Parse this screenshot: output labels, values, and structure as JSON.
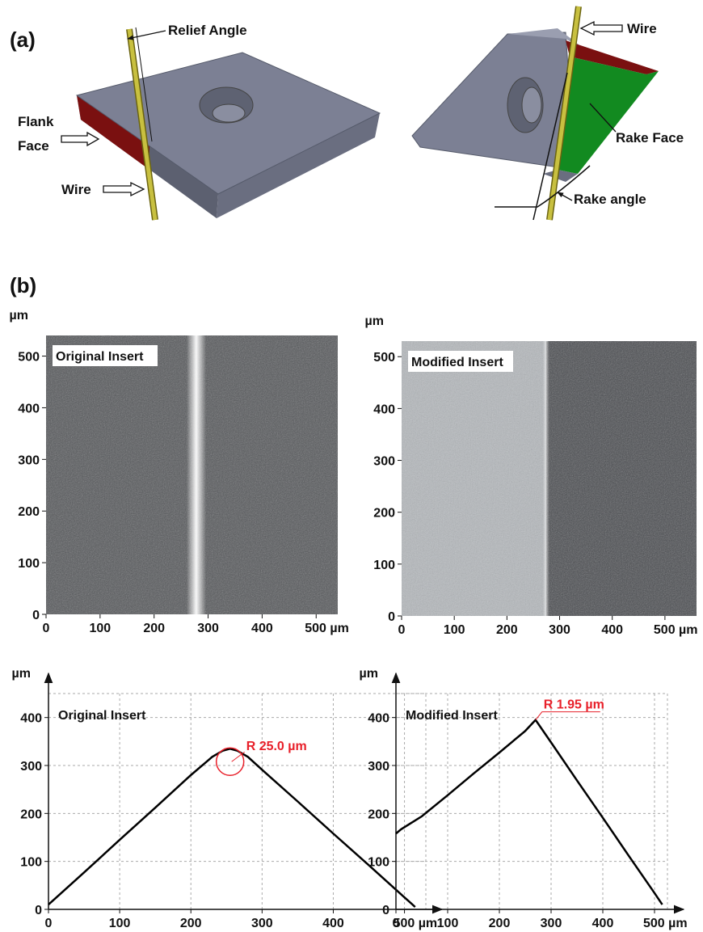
{
  "panel_a": {
    "label": "(a)",
    "relief_angle": "Relief Angle",
    "flank_face": [
      "Flank",
      "Face"
    ],
    "wire_left": "Wire",
    "wire_right": "Wire",
    "rake_face": "Rake Face",
    "rake_angle": "Rake angle"
  },
  "panel_b": {
    "label": "(b)"
  },
  "chart_data": [
    {
      "type": "image",
      "title": "Original Insert",
      "y_label": "µm",
      "xlim": [
        0,
        540
      ],
      "ylim": [
        0,
        540
      ],
      "xticks": [
        0,
        100,
        200,
        300,
        400,
        {
          "value": 500,
          "label": "500 µm"
        }
      ],
      "yticks": [
        0,
        100,
        200,
        300,
        400,
        500
      ]
    },
    {
      "type": "image",
      "title": "Modified Insert",
      "y_label": "µm",
      "xlim": [
        0,
        560
      ],
      "ylim": [
        0,
        530
      ],
      "xticks": [
        0,
        100,
        200,
        300,
        400,
        {
          "value": 500,
          "label": "500 µm"
        }
      ],
      "yticks": [
        0,
        100,
        200,
        300,
        400,
        500
      ]
    },
    {
      "type": "line",
      "title": "Original Insert",
      "y_label": "µm",
      "annotation": "R 25.0 µm",
      "color": "#000000",
      "annotation_color": "#e8202a",
      "x": [
        0,
        50,
        100,
        150,
        200,
        230,
        245,
        255,
        265,
        280,
        300,
        350,
        400,
        450,
        500,
        515
      ],
      "values": [
        10,
        77,
        145,
        212,
        280,
        318,
        331,
        335,
        331,
        318,
        291,
        225,
        158,
        92,
        25,
        5
      ],
      "xlim": [
        0,
        530
      ],
      "ylim": [
        0,
        450
      ],
      "xticks": [
        0,
        100,
        200,
        300,
        400,
        {
          "value": 500,
          "label": "500 µm"
        }
      ],
      "yticks": [
        0,
        100,
        200,
        300,
        400
      ],
      "grid": true
    },
    {
      "type": "line",
      "title": "Modified Insert",
      "y_label": "µm",
      "annotation": "R 1.95 µm",
      "color": "#000000",
      "annotation_color": "#e8202a",
      "x": [
        0,
        10,
        50,
        100,
        150,
        200,
        250,
        270,
        300,
        350,
        400,
        450,
        500,
        515
      ],
      "values": [
        158,
        167,
        194,
        238,
        283,
        327,
        372,
        395,
        348,
        269,
        191,
        112,
        34,
        10
      ],
      "xlim": [
        0,
        525
      ],
      "ylim": [
        0,
        450
      ],
      "xticks": [
        0,
        100,
        200,
        300,
        400,
        {
          "value": 500,
          "label": "500 µm"
        }
      ],
      "yticks": [
        0,
        100,
        200,
        300,
        400
      ],
      "grid": true
    }
  ]
}
